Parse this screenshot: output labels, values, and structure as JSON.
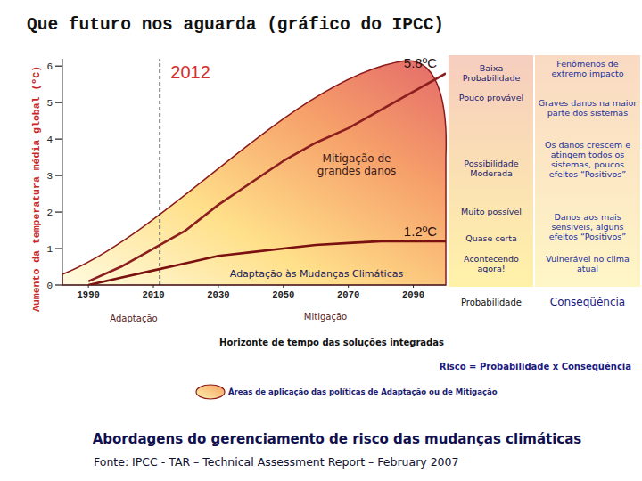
{
  "title": "Que futuro nos aguarda (gráfico do IPCC)",
  "chart_data": {
    "type": "line",
    "y_label": "Aumento da temperatura média global (ºC)",
    "x": [
      1990,
      2000,
      2010,
      2020,
      2030,
      2040,
      2050,
      2060,
      2070,
      2080,
      2090,
      2100
    ],
    "series": [
      {
        "color": "#8b1e1e",
        "values": [
          0.1,
          0.5,
          1.0,
          1.5,
          2.2,
          2.8,
          3.4,
          3.9,
          4.3,
          4.8,
          5.3,
          5.8
        ],
        "end_label": "5.8ºC"
      },
      {
        "color": "#7a1010",
        "values": [
          0.0,
          0.2,
          0.4,
          0.6,
          0.8,
          0.9,
          1.0,
          1.1,
          1.15,
          1.2,
          1.2,
          1.2
        ],
        "end_label": "1.2ºC"
      }
    ],
    "xlim": [
      1982,
      2100
    ],
    "xticks": [
      1990,
      2010,
      2030,
      2050,
      2070,
      2090
    ],
    "ylim": [
      0,
      6.2
    ],
    "yticks": [
      0,
      1,
      2,
      3,
      4,
      5,
      6
    ],
    "reference_line": {
      "value": 2012,
      "label": "2012"
    },
    "annotations": [
      "Mitigação de grandes danos",
      "Adaptação às Mudanças Climáticas"
    ],
    "x_annotations": [
      "Adaptação",
      "Mitigação"
    ],
    "x_label": "Horizonte de tempo das soluções integradas"
  },
  "risk_table": {
    "probability": [
      "Baixa Probabilidade",
      "Pouco provável",
      "Possibilidade Moderada",
      "Muito possível",
      "Quase certa",
      "Acontecendo agora!"
    ],
    "consequence": [
      "Fenômenos de extremo impacto",
      "Graves danos na maior parte dos sistemas",
      "Os danos crescem e atingem todos os sistemas, poucos efeitos “Positivos”",
      "Danos aos mais sensíveis, alguns efeitos “Positivos”",
      "Vulnerável no clima atual"
    ],
    "header": [
      "Probabilidade",
      "Conseqüência"
    ]
  },
  "formula": "Risco = Probabilidade x Conseqüência",
  "legend_text": "Áreas de aplicação das políticas de Adaptação ou de Mitigação",
  "subtitle": "Abordagens do gerenciamento de risco das mudanças climáticas",
  "source": "Fonte: IPCC - TAR – Technical Assessment Report – February 2007"
}
